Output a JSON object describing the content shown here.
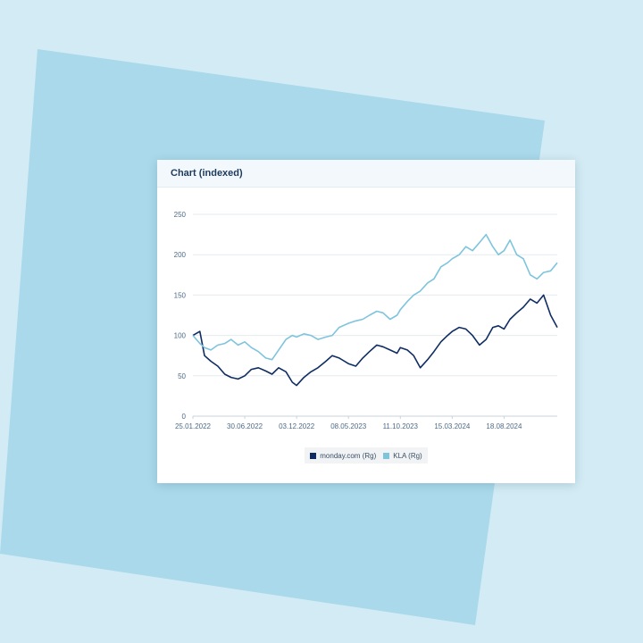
{
  "card": {
    "title": "Chart (indexed)"
  },
  "chart_data": {
    "type": "line",
    "title": "Chart (indexed)",
    "xlabel": "",
    "ylabel": "",
    "ylim": [
      0,
      250
    ],
    "yticks": [
      0,
      50,
      100,
      150,
      200,
      250
    ],
    "xticks": [
      "25.01.2022",
      "30.06.2022",
      "03.12.2022",
      "08.05.2023",
      "11.10.2023",
      "15.03.2024",
      "18.08.2024"
    ],
    "grid": true,
    "legend_position": "bottom",
    "x": [
      "2022-01-25",
      "2022-02-15",
      "2022-03-01",
      "2022-03-20",
      "2022-04-10",
      "2022-05-01",
      "2022-05-20",
      "2022-06-10",
      "2022-06-30",
      "2022-07-20",
      "2022-08-10",
      "2022-09-01",
      "2022-09-20",
      "2022-10-10",
      "2022-11-01",
      "2022-11-20",
      "2022-12-03",
      "2022-12-25",
      "2023-01-15",
      "2023-02-05",
      "2023-03-01",
      "2023-03-20",
      "2023-04-10",
      "2023-05-08",
      "2023-05-30",
      "2023-06-20",
      "2023-07-10",
      "2023-08-01",
      "2023-08-20",
      "2023-09-10",
      "2023-10-01",
      "2023-10-11",
      "2023-11-01",
      "2023-11-20",
      "2023-12-10",
      "2024-01-01",
      "2024-01-20",
      "2024-02-10",
      "2024-03-01",
      "2024-03-15",
      "2024-04-05",
      "2024-04-25",
      "2024-05-15",
      "2024-06-05",
      "2024-06-25",
      "2024-07-15",
      "2024-08-01",
      "2024-08-18",
      "2024-09-05",
      "2024-09-25",
      "2024-10-15",
      "2024-11-05",
      "2024-11-25",
      "2024-12-15",
      "2025-01-05",
      "2025-01-25"
    ],
    "series": [
      {
        "name": "monday.com (Rg)",
        "color": "#0f2d63",
        "values": [
          100,
          105,
          75,
          68,
          62,
          52,
          48,
          46,
          50,
          58,
          60,
          56,
          52,
          60,
          55,
          42,
          38,
          48,
          55,
          60,
          68,
          75,
          72,
          65,
          62,
          72,
          80,
          88,
          86,
          82,
          78,
          85,
          82,
          75,
          60,
          70,
          80,
          92,
          100,
          105,
          110,
          108,
          100,
          88,
          95,
          110,
          112,
          108,
          120,
          128,
          135,
          145,
          140,
          150,
          125,
          110
        ]
      },
      {
        "name": "KLA (Rg)",
        "color": "#7ec4dd",
        "values": [
          100,
          90,
          85,
          82,
          88,
          90,
          95,
          88,
          92,
          85,
          80,
          72,
          70,
          82,
          95,
          100,
          98,
          102,
          100,
          95,
          98,
          100,
          110,
          115,
          118,
          120,
          125,
          130,
          128,
          120,
          125,
          132,
          142,
          150,
          155,
          165,
          170,
          185,
          190,
          195,
          200,
          210,
          205,
          215,
          225,
          210,
          200,
          205,
          218,
          200,
          195,
          175,
          170,
          178,
          180,
          190
        ]
      }
    ]
  },
  "legend": {
    "items": [
      {
        "label": "monday.com (Rg)",
        "color": "#0f2d63"
      },
      {
        "label": "KLA (Rg)",
        "color": "#7ec4dd"
      }
    ]
  }
}
